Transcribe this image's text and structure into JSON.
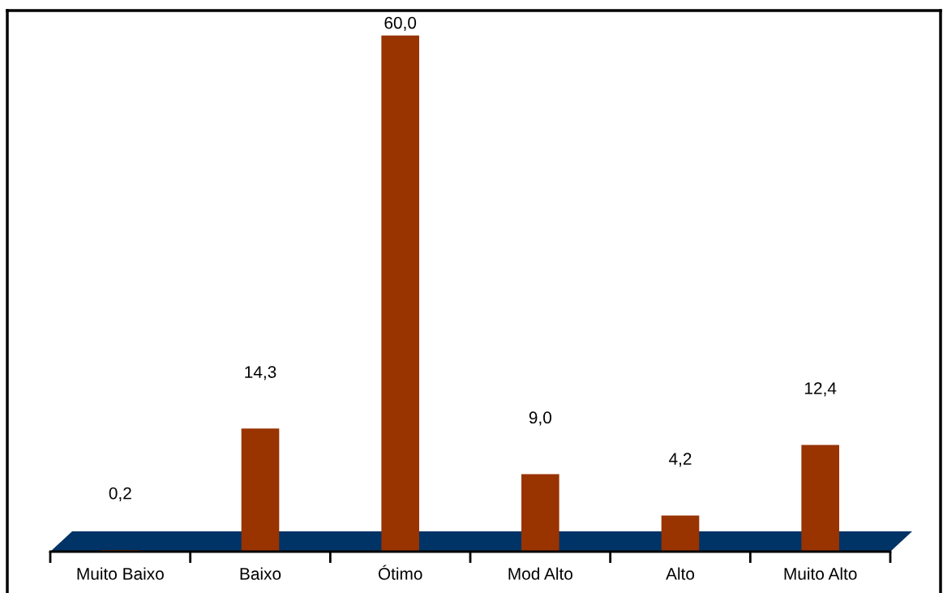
{
  "chart_data": {
    "type": "bar",
    "categories": [
      "Muito Baixo",
      "Baixo",
      "Ótimo",
      "Mod Alto",
      "Alto",
      "Muito Alto"
    ],
    "values": [
      0.2,
      14.3,
      60.0,
      9.0,
      4.2,
      12.4
    ],
    "value_labels": [
      "0,2",
      "14,3",
      "60,0",
      "9,0",
      "4,2",
      "12,4"
    ],
    "color": "#993300",
    "grid": false,
    "legend": false
  }
}
